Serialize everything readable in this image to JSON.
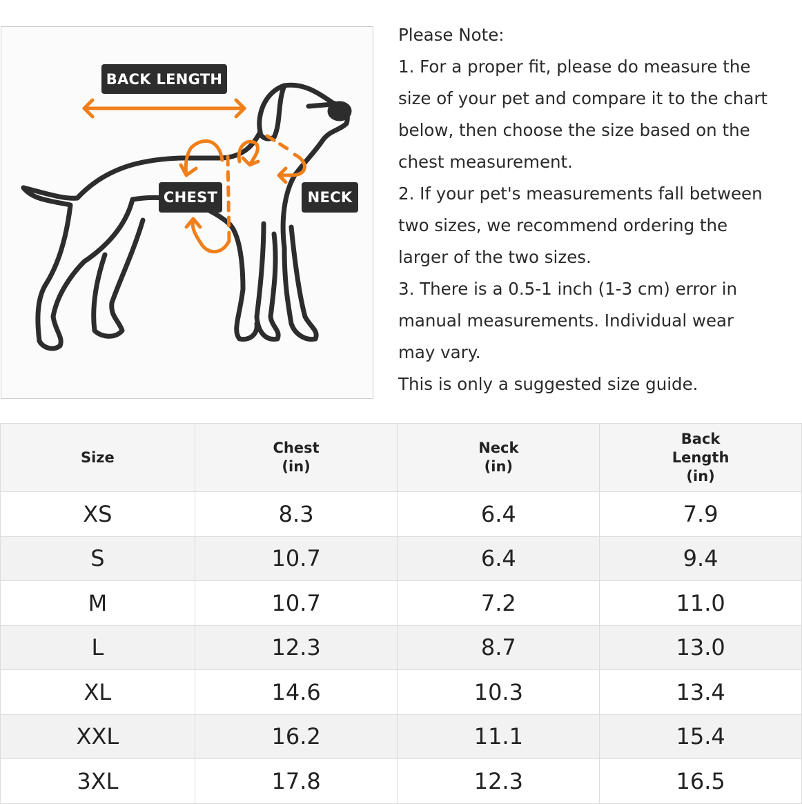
{
  "diagram": {
    "labels": {
      "back_length": "BACK LENGTH",
      "chest": "CHEST",
      "neck": "NECK"
    },
    "colors": {
      "arrow": "#f07f1a",
      "outline": "#2d2d2d",
      "tag_bg": "#2d2d2d"
    }
  },
  "notes": {
    "lines": [
      "Please Note:",
      "1. For a proper fit, please do measure the",
      "size of your pet and compare it to the chart",
      "below, then choose the size based on the",
      "chest measurement.",
      "2. If your pet's measurements fall between",
      "two sizes, we recommend ordering the",
      "larger of the two sizes.",
      "3. There is a 0.5-1 inch (1-3 cm) error in",
      "manual measurements. Individual wear",
      "may vary.",
      "This is only a suggested size guide."
    ]
  },
  "table": {
    "headers": [
      [
        "Size"
      ],
      [
        "Chest",
        "(in)"
      ],
      [
        "Neck",
        "(in)"
      ],
      [
        "Back",
        "Length",
        "(in)"
      ]
    ],
    "rows": [
      [
        "XS",
        "8.3",
        "6.4",
        "7.9"
      ],
      [
        "S",
        "10.7",
        "6.4",
        "9.4"
      ],
      [
        "M",
        "10.7",
        "7.2",
        "11.0"
      ],
      [
        "L",
        "12.3",
        "8.7",
        "13.0"
      ],
      [
        "XL",
        "14.6",
        "10.3",
        "13.4"
      ],
      [
        "XXL",
        "16.2",
        "11.1",
        "15.4"
      ],
      [
        "3XL",
        "17.8",
        "12.3",
        "16.5"
      ]
    ]
  }
}
